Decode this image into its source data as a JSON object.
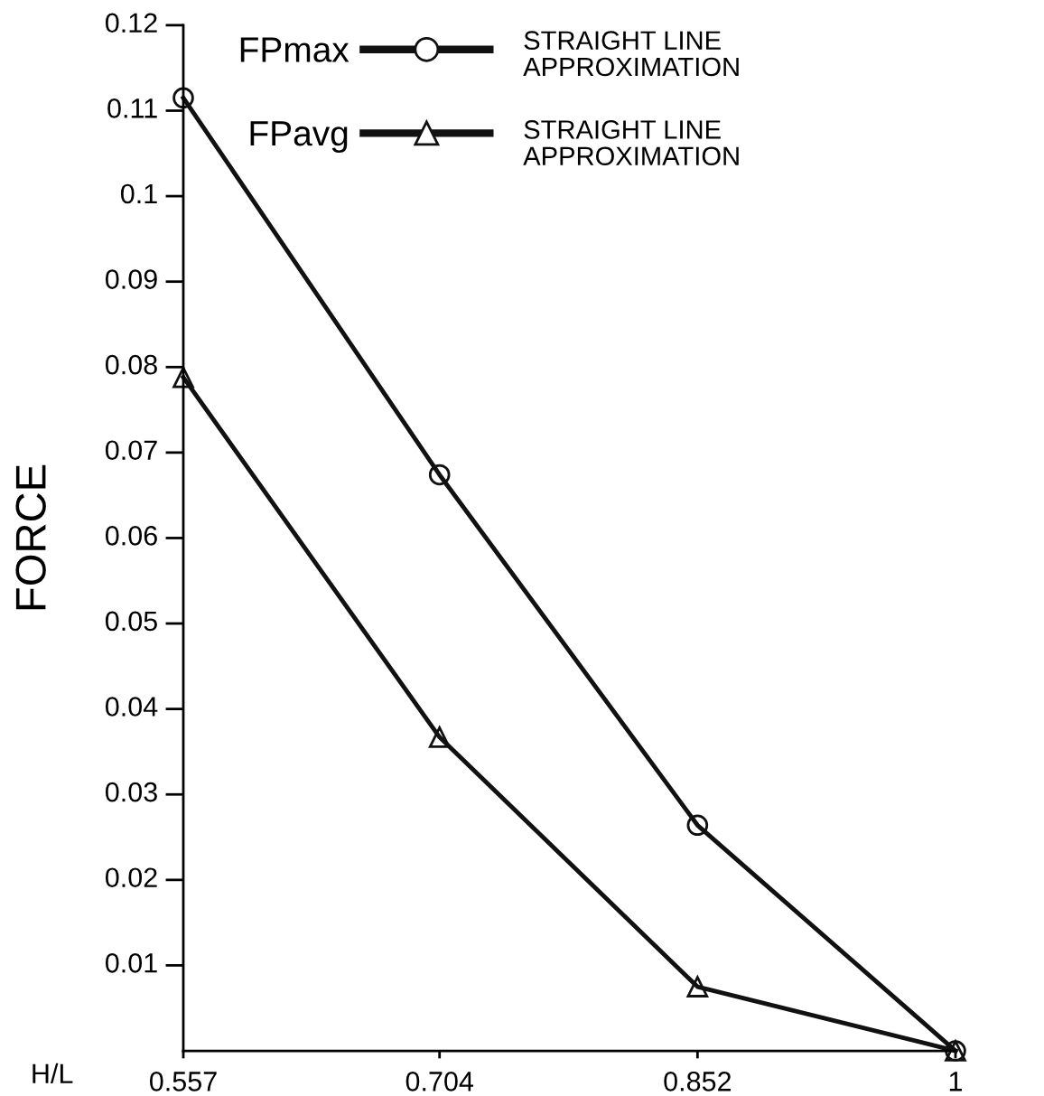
{
  "chart_data": {
    "type": "line",
    "xlabel": "H/L",
    "ylabel": "FORCE",
    "x": [
      0.557,
      0.704,
      0.852,
      1
    ],
    "series": [
      {
        "name": "FPmax",
        "color": "#111111",
        "marker": "circle",
        "values": [
          0.1115,
          0.0674,
          0.0264,
          0.0
        ]
      },
      {
        "name": "FPavg",
        "color": "#111111",
        "marker": "triangle",
        "values": [
          0.0788,
          0.0367,
          0.0075,
          0.0
        ]
      }
    ],
    "annotations": [
      "STRAIGHT LINE\nAPPROXIMATION",
      "STRAIGHT LINE\nAPPROXIMATION"
    ],
    "xlim": [
      0.557,
      1
    ],
    "xticks": [
      0.557,
      0.704,
      0.852,
      1
    ],
    "ylim": [
      0,
      0.12
    ],
    "yticks": [
      0.01,
      0.02,
      0.03,
      0.04,
      0.05,
      0.06,
      0.07,
      0.08,
      0.09,
      0.1,
      0.11,
      0.12
    ],
    "grid": false,
    "legend": "top left",
    "line_style": "solid"
  }
}
